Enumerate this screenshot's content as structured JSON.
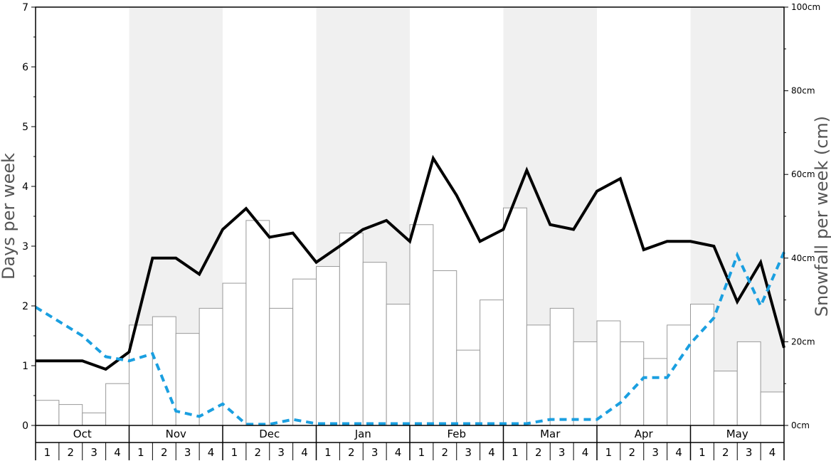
{
  "chart_data": {
    "type": "bar+line",
    "title": "",
    "ylabel_left": "Days per week",
    "ylabel_right": "Snowfall per week (cm)",
    "ylim_left": [
      0,
      7
    ],
    "ylim_right": [
      0,
      100
    ],
    "left_ticks": [
      "0",
      "1",
      "2",
      "3",
      "4",
      "5",
      "6",
      "7"
    ],
    "right_ticks": [
      "0cm",
      "20cm",
      "40cm",
      "60cm",
      "80cm",
      "100cm"
    ],
    "months": [
      "Oct",
      "Nov",
      "Dec",
      "Jan",
      "Feb",
      "Mar",
      "Apr",
      "May"
    ],
    "weeks": [
      "1",
      "2",
      "3",
      "4"
    ],
    "colors": {
      "snow_days_line": "#000000",
      "secondary_line": "#1a9fe0",
      "bar_fill": "#ffffff",
      "bar_stroke": "#999999",
      "band_shade": "#f0f0f0"
    },
    "series": [
      {
        "kind": "bar",
        "axis": "right",
        "values": [
          6,
          5,
          3,
          10,
          24,
          26,
          22,
          28,
          34,
          49,
          28,
          35,
          38,
          46,
          39,
          29,
          48,
          37,
          18,
          30,
          52,
          24,
          28,
          20,
          25,
          20,
          16,
          24,
          29,
          13,
          20,
          8
        ]
      },
      {
        "kind": "line",
        "axis": "left",
        "style": "solid",
        "values": [
          1.08,
          1.08,
          1.08,
          0.94,
          1.23,
          2.8,
          2.8,
          2.53,
          3.28,
          3.63,
          3.15,
          3.22,
          2.73,
          3.0,
          3.28,
          3.43,
          3.08,
          4.47,
          3.85,
          3.08,
          3.28,
          4.27,
          3.36,
          3.28,
          3.92,
          4.13,
          2.94,
          3.08,
          3.08,
          3.0,
          2.07,
          2.73,
          1.3
        ]
      },
      {
        "kind": "line",
        "axis": "left",
        "style": "dashed",
        "values": [
          1.98,
          1.74,
          1.5,
          1.15,
          1.08,
          1.2,
          0.24,
          0.15,
          0.36,
          0.02,
          0.02,
          0.1,
          0.03,
          0.03,
          0.03,
          0.03,
          0.03,
          0.03,
          0.03,
          0.03,
          0.03,
          0.03,
          0.1,
          0.1,
          0.1,
          0.38,
          0.8,
          0.8,
          1.37,
          1.8,
          2.85,
          2.0,
          2.9
        ]
      }
    ]
  }
}
